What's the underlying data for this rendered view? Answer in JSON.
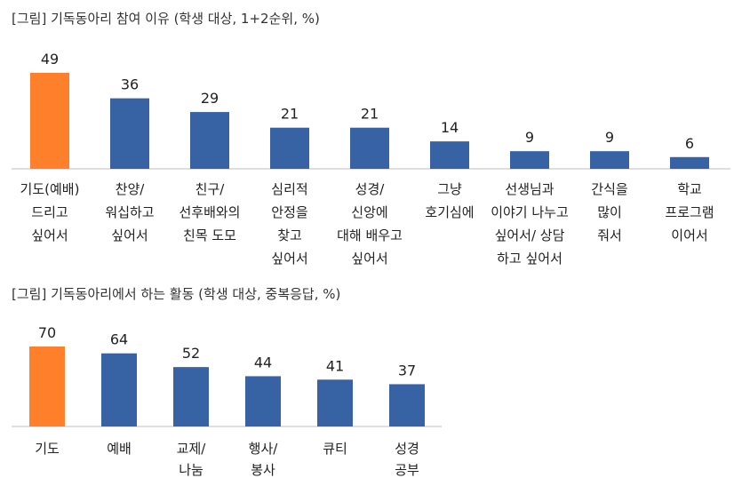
{
  "chart_data": [
    {
      "type": "bar",
      "title": "[그림] 기독동아리 참여 이유 (학생 대상, 1+2순위, %)",
      "categories": [
        [
          "기도(예배)",
          "드리고",
          "싶어서"
        ],
        [
          "찬양/",
          "워십하고",
          "싶어서"
        ],
        [
          "친구/",
          "선후배와의",
          "친목 도모"
        ],
        [
          "심리적",
          "안정을",
          "찾고",
          "싶어서"
        ],
        [
          "성경/",
          "신앙에",
          "대해 배우고",
          "싶어서"
        ],
        [
          "그냥",
          "호기심에"
        ],
        [
          "선생님과",
          "이야기 나누고",
          "싶어서/ 상담",
          "하고 싶어서"
        ],
        [
          "간식을",
          "많이",
          "줘서"
        ],
        [
          "학교",
          "프로그램",
          "이어서"
        ]
      ],
      "values": [
        49,
        36,
        29,
        21,
        21,
        14,
        9,
        9,
        6
      ],
      "colors": [
        "#FF7F2A",
        "#3763A5",
        "#3763A5",
        "#3763A5",
        "#3763A5",
        "#3763A5",
        "#3763A5",
        "#3763A5",
        "#3763A5"
      ],
      "value_label_colors": [
        "#222222",
        "#222222",
        "#222222",
        "#222222",
        "#222222",
        "#222222",
        "#222222",
        "#222222",
        "#1F3F6E"
      ],
      "ylim": [
        0,
        49
      ]
    },
    {
      "type": "bar",
      "title": "[그림] 기독동아리에서 하는 활동 (학생 대상, 중복응답, %)",
      "categories": [
        [
          "기도"
        ],
        [
          "예배"
        ],
        [
          "교제/",
          "나눔"
        ],
        [
          "행사/",
          "봉사"
        ],
        [
          "큐티"
        ],
        [
          "성경",
          "공부"
        ]
      ],
      "values": [
        70,
        64,
        52,
        44,
        41,
        37
      ],
      "colors": [
        "#FF7F2A",
        "#3763A5",
        "#3763A5",
        "#3763A5",
        "#3763A5",
        "#3763A5"
      ],
      "value_label_colors": [
        "#222222",
        "#222222",
        "#222222",
        "#222222",
        "#222222",
        "#222222"
      ],
      "ylim": [
        0,
        70
      ]
    }
  ]
}
